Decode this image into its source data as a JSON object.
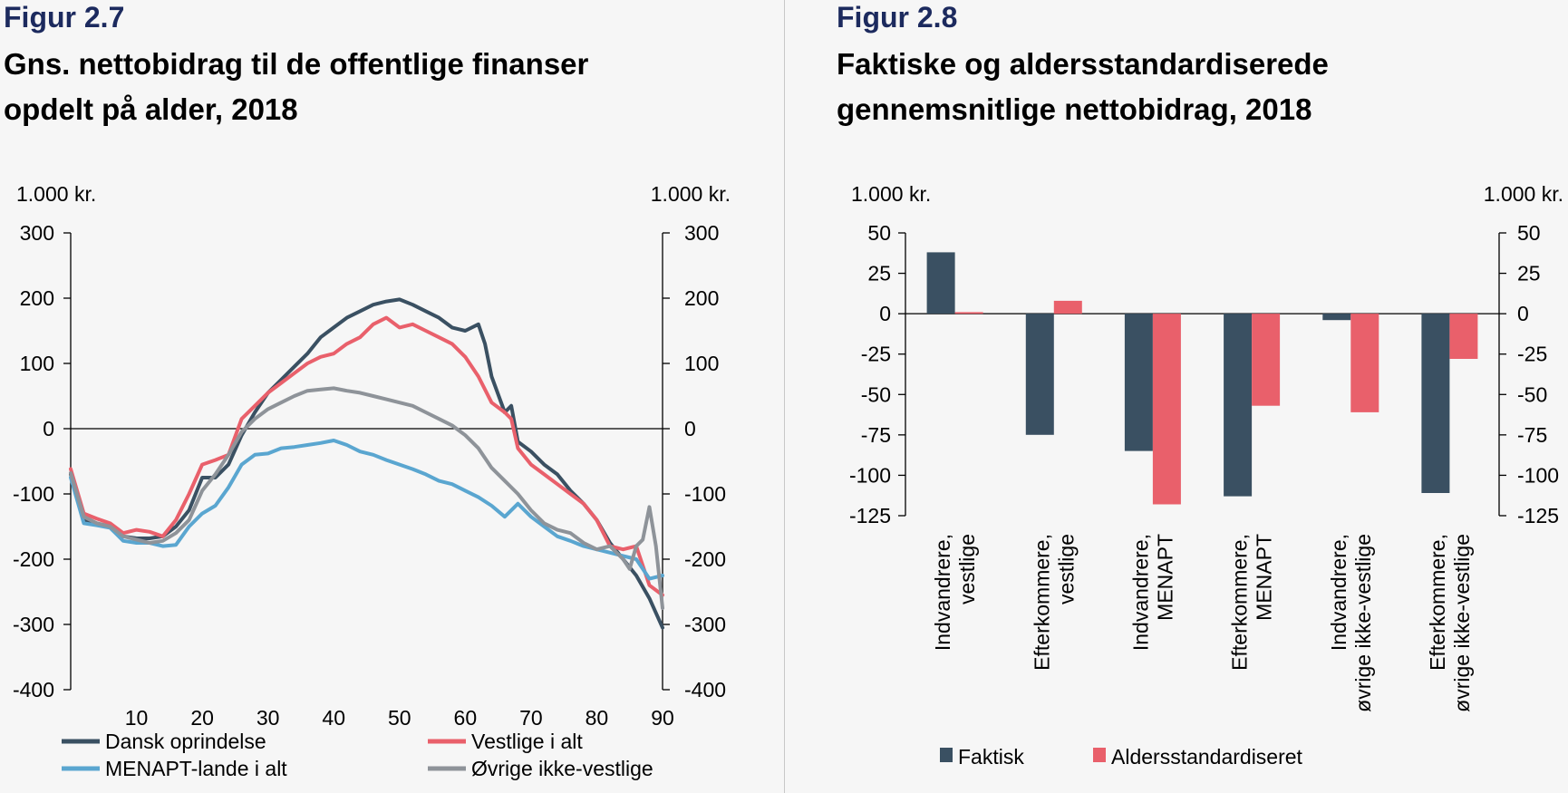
{
  "chart_data": [
    {
      "type": "line",
      "figure_label": "Figur 2.7",
      "title_line1": "Gns. nettobidrag til de offentlige finanser",
      "title_line2": "opdelt på alder, 2018",
      "ylabel_left": "1.000 kr.",
      "ylabel_right": "1.000 kr.",
      "ylim": [
        -400,
        300
      ],
      "yticks": [
        "300",
        "200",
        "100",
        "0",
        "-100",
        "-200",
        "-300",
        "-400"
      ],
      "xlim": [
        0,
        90
      ],
      "xticks": [
        "10",
        "20",
        "30",
        "40",
        "50",
        "60",
        "70",
        "80",
        "90"
      ],
      "series": [
        {
          "name": "Dansk oprindelse",
          "color": "#3a5062",
          "x": [
            0,
            2,
            4,
            6,
            8,
            10,
            12,
            14,
            16,
            18,
            20,
            22,
            24,
            26,
            28,
            30,
            32,
            34,
            36,
            38,
            40,
            42,
            44,
            46,
            48,
            50,
            52,
            54,
            56,
            58,
            60,
            62,
            63,
            64,
            66,
            67,
            68,
            70,
            72,
            74,
            76,
            78,
            80,
            82,
            84,
            86,
            88,
            90
          ],
          "y": [
            -70,
            -140,
            -145,
            -150,
            -165,
            -168,
            -168,
            -165,
            -150,
            -125,
            -75,
            -75,
            -55,
            -10,
            25,
            55,
            75,
            95,
            115,
            140,
            155,
            170,
            180,
            190,
            195,
            198,
            190,
            180,
            170,
            155,
            150,
            160,
            130,
            80,
            25,
            35,
            -20,
            -35,
            -55,
            -70,
            -95,
            -115,
            -140,
            -175,
            -200,
            -225,
            -260,
            -305
          ]
        },
        {
          "name": "Vestlige i alt",
          "color": "#e9606b",
          "x": [
            0,
            2,
            4,
            6,
            8,
            10,
            12,
            14,
            16,
            18,
            20,
            22,
            24,
            26,
            28,
            30,
            32,
            34,
            36,
            38,
            40,
            42,
            44,
            46,
            48,
            50,
            52,
            54,
            56,
            58,
            60,
            62,
            64,
            66,
            67,
            68,
            70,
            72,
            74,
            76,
            78,
            80,
            82,
            84,
            86,
            88,
            90
          ],
          "y": [
            -62,
            -130,
            -138,
            -145,
            -160,
            -155,
            -158,
            -165,
            -140,
            -100,
            -55,
            -48,
            -40,
            15,
            35,
            55,
            70,
            85,
            100,
            110,
            115,
            130,
            140,
            160,
            170,
            155,
            160,
            150,
            140,
            130,
            110,
            80,
            40,
            25,
            15,
            -30,
            -55,
            -70,
            -85,
            -100,
            -115,
            -140,
            -180,
            -185,
            -180,
            -240,
            -255
          ]
        },
        {
          "name": "MENAPT-lande i alt",
          "color": "#5aa6d0",
          "x": [
            0,
            2,
            4,
            6,
            8,
            10,
            12,
            14,
            16,
            18,
            20,
            22,
            24,
            26,
            28,
            30,
            32,
            34,
            36,
            38,
            40,
            42,
            44,
            46,
            48,
            50,
            52,
            54,
            56,
            58,
            60,
            62,
            64,
            66,
            68,
            70,
            72,
            74,
            76,
            78,
            80,
            82,
            84,
            86,
            88,
            90
          ],
          "y": [
            -75,
            -145,
            -148,
            -152,
            -172,
            -175,
            -175,
            -180,
            -178,
            -150,
            -130,
            -118,
            -90,
            -55,
            -40,
            -38,
            -30,
            -28,
            -25,
            -22,
            -18,
            -25,
            -35,
            -40,
            -48,
            -55,
            -62,
            -70,
            -80,
            -85,
            -95,
            -105,
            -118,
            -135,
            -115,
            -135,
            -150,
            -165,
            -172,
            -180,
            -185,
            -190,
            -195,
            -200,
            -230,
            -225
          ]
        },
        {
          "name": "Øvrige ikke-vestlige",
          "color": "#8e9399",
          "x": [
            0,
            2,
            4,
            6,
            8,
            10,
            12,
            14,
            16,
            18,
            20,
            22,
            24,
            26,
            28,
            30,
            32,
            34,
            36,
            38,
            40,
            42,
            44,
            46,
            48,
            50,
            52,
            54,
            56,
            58,
            60,
            62,
            64,
            66,
            68,
            70,
            72,
            74,
            76,
            78,
            80,
            82,
            84,
            85,
            86,
            87,
            88,
            89,
            90
          ],
          "y": [
            -68,
            -135,
            -145,
            -150,
            -165,
            -170,
            -175,
            -172,
            -160,
            -140,
            -95,
            -70,
            -40,
            -5,
            15,
            30,
            40,
            50,
            58,
            60,
            62,
            58,
            55,
            50,
            45,
            40,
            35,
            25,
            15,
            5,
            -10,
            -30,
            -60,
            -80,
            -100,
            -125,
            -145,
            -155,
            -160,
            -175,
            -185,
            -180,
            -200,
            -215,
            -180,
            -170,
            -120,
            -180,
            -275
          ]
        }
      ]
    },
    {
      "type": "bar",
      "figure_label": "Figur 2.8",
      "title_line1": "Faktiske og aldersstandardiserede",
      "title_line2": "gennemsnitlige nettobidrag, 2018",
      "ylabel_left": "1.000 kr.",
      "ylabel_right": "1.000 kr.",
      "ylim": [
        -125,
        50
      ],
      "yticks": [
        "50",
        "25",
        "0",
        "-25",
        "-50",
        "-75",
        "-100",
        "-125"
      ],
      "categories": [
        [
          "Indvandrere,",
          "vestlige"
        ],
        [
          "Efterkommere,",
          "vestlige"
        ],
        [
          "Indvandrere,",
          "MENAPT"
        ],
        [
          "Efterkommere,",
          "MENAPT"
        ],
        [
          "Indvandrere,",
          "øvrige ikke-vestlige"
        ],
        [
          "Efterkommere,",
          "øvrige ikke-vestlige"
        ]
      ],
      "series": [
        {
          "name": "Faktisk",
          "color": "#3a5062",
          "values": [
            38,
            -75,
            -85,
            -113,
            -4,
            -111
          ]
        },
        {
          "name": "Aldersstandardiseret",
          "color": "#e9606b",
          "values": [
            1,
            8,
            -118,
            -57,
            -61,
            -28
          ]
        }
      ]
    }
  ]
}
